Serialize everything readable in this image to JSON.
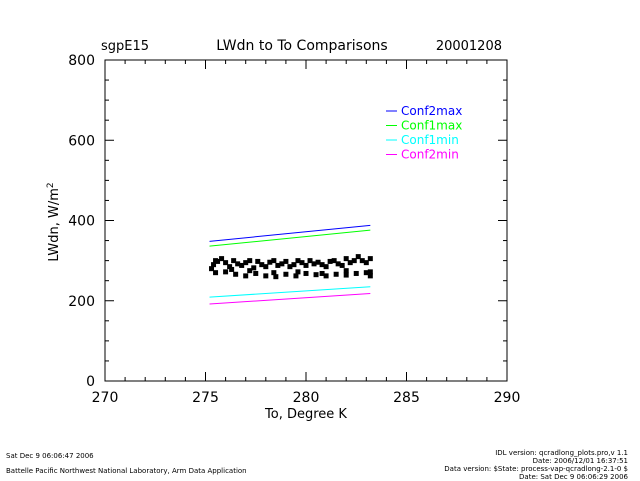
{
  "header": {
    "site": "sgpE15",
    "title": "LWdn to To Comparisons",
    "date": "20001208"
  },
  "footer": {
    "left_date": "Sat Dec  9 06:06:47 2006",
    "left_org": "Battelle Pacific Northwest National Laboratory, Arm Data Application",
    "right_lines": [
      "IDL version: qcradlong_plots.pro,v 1.1",
      "Date: 2006/12/01 16:37:51",
      "Data version: $State: process-vap-qcradlong-2.1-0 $",
      "Date: Sat Dec  9 06:06:29 2006"
    ]
  },
  "chart_data": {
    "type": "scatter",
    "title": "LWdn to To Comparisons",
    "xlabel": "To, Degree K",
    "ylabel": "LWdn, W/m",
    "ylabel_superscript": "2",
    "xlim": [
      270,
      290
    ],
    "ylim": [
      0,
      800
    ],
    "xticks": [
      270,
      275,
      280,
      285,
      290
    ],
    "yticks": [
      0,
      200,
      400,
      600,
      800
    ],
    "grid": false,
    "legend_position": "top-right",
    "lines": [
      {
        "name": "Conf2max",
        "color": "#0000ff",
        "x": [
          275.2,
          283.2
        ],
        "y": [
          348,
          388
        ]
      },
      {
        "name": "Conf1max",
        "color": "#00ff00",
        "x": [
          275.2,
          283.2
        ],
        "y": [
          336,
          376
        ]
      },
      {
        "name": "Conf1min",
        "color": "#00ffff",
        "x": [
          275.2,
          283.2
        ],
        "y": [
          209,
          235
        ]
      },
      {
        "name": "Conf2min",
        "color": "#ff00ff",
        "x": [
          275.2,
          283.2
        ],
        "y": [
          192,
          218
        ]
      }
    ],
    "observations": {
      "color": "#000000",
      "x": [
        275.3,
        275.4,
        275.5,
        275.6,
        275.8,
        276.0,
        276.2,
        276.4,
        276.6,
        276.8,
        277.0,
        277.2,
        277.4,
        277.6,
        277.8,
        278.0,
        278.2,
        278.4,
        278.6,
        278.8,
        279.0,
        279.2,
        279.4,
        279.6,
        279.8,
        280.0,
        280.2,
        280.4,
        280.6,
        280.8,
        281.0,
        281.2,
        281.4,
        281.6,
        281.8,
        282.0,
        282.2,
        282.4,
        282.6,
        282.8,
        283.0,
        283.2,
        275.5,
        276.0,
        276.5,
        277.0,
        277.5,
        278.0,
        278.5,
        279.0,
        279.5,
        280.0,
        280.5,
        281.0,
        281.5,
        282.0,
        282.5,
        283.0,
        283.2,
        276.3,
        277.2,
        278.4,
        279.6,
        280.8,
        282.0,
        283.2
      ],
      "y": [
        280,
        290,
        300,
        298,
        305,
        295,
        285,
        300,
        292,
        288,
        295,
        300,
        282,
        298,
        290,
        285,
        296,
        300,
        288,
        292,
        298,
        285,
        290,
        300,
        295,
        288,
        300,
        292,
        296,
        290,
        285,
        298,
        300,
        292,
        288,
        305,
        295,
        300,
        310,
        300,
        295,
        305,
        270,
        272,
        266,
        262,
        268,
        262,
        260,
        266,
        262,
        268,
        265,
        262,
        266,
        264,
        268,
        270,
        272,
        278,
        275,
        270,
        272,
        268,
        275,
        262
      ]
    }
  }
}
